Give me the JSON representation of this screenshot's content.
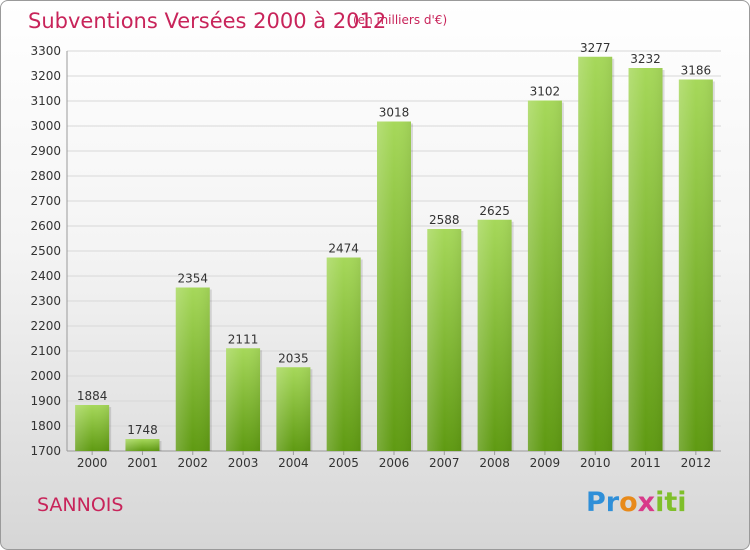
{
  "header": {
    "title": "Subventions Versées 2000 à 2012",
    "subtitle": "(en milliers d'€)"
  },
  "footer": {
    "city": "SANNOIS",
    "logo_parts": [
      "Pr",
      "o",
      "x",
      "iti"
    ]
  },
  "colors": {
    "title": "#c8245a",
    "bar_top": "#a6d85a",
    "bar_bottom": "#5f9a12",
    "gridline": "#d8d8d8"
  },
  "chart_data": {
    "type": "bar",
    "title": "Subventions Versées 2000 à 2012",
    "subtitle": "(en milliers d'€)",
    "categories": [
      "2000",
      "2001",
      "2002",
      "2003",
      "2004",
      "2005",
      "2006",
      "2007",
      "2008",
      "2009",
      "2010",
      "2011",
      "2012"
    ],
    "values": [
      1884,
      1748,
      2354,
      2111,
      2035,
      2474,
      3018,
      2588,
      2625,
      3102,
      3277,
      3232,
      3186
    ],
    "ylim": [
      1700,
      3300
    ],
    "yticks": [
      1700,
      1800,
      1900,
      2000,
      2100,
      2200,
      2300,
      2400,
      2500,
      2600,
      2700,
      2800,
      2900,
      3000,
      3100,
      3200,
      3300
    ],
    "grid": true,
    "data_labels": true
  }
}
